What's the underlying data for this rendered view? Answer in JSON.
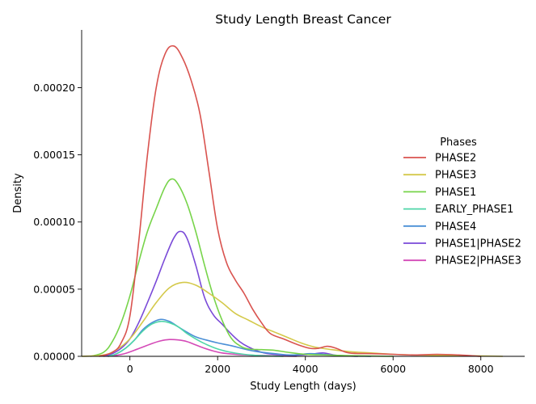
{
  "chart_data": {
    "type": "line",
    "title": "Study Length Breast Cancer",
    "xlabel": "Study Length (days)",
    "ylabel": "Density",
    "xlim": [
      -1100,
      9000
    ],
    "ylim": [
      0,
      0.000243
    ],
    "x_ticks": [
      0,
      2000,
      4000,
      6000,
      8000
    ],
    "x_tick_labels": [
      "0",
      "2000",
      "4000",
      "6000",
      "8000"
    ],
    "y_ticks": [
      0,
      5e-05,
      0.0001,
      0.00015,
      0.0002
    ],
    "y_tick_labels": [
      "0.00000",
      "0.00005",
      "0.00010",
      "0.00015",
      "0.00020"
    ],
    "grid": false,
    "legend": {
      "title": "Phases",
      "placement": "center-right"
    },
    "series": [
      {
        "name": "PHASE2",
        "color": "#d9534f",
        "points": [
          [
            -700,
            0
          ],
          [
            -400,
            3e-06
          ],
          [
            -200,
            1e-05
          ],
          [
            0,
            3e-05
          ],
          [
            200,
            8.5e-05
          ],
          [
            400,
            0.00015
          ],
          [
            600,
            0.0002
          ],
          [
            800,
            0.000225
          ],
          [
            1000,
            0.000231
          ],
          [
            1200,
            0.000222
          ],
          [
            1400,
            0.000205
          ],
          [
            1600,
            0.00018
          ],
          [
            1800,
            0.000138
          ],
          [
            2000,
            9.5e-05
          ],
          [
            2200,
            7e-05
          ],
          [
            2400,
            5.7e-05
          ],
          [
            2600,
            4.7e-05
          ],
          [
            2800,
            3.5e-05
          ],
          [
            3000,
            2.5e-05
          ],
          [
            3200,
            1.7e-05
          ],
          [
            3500,
            1.3e-05
          ],
          [
            3800,
            9e-06
          ],
          [
            4100,
            6e-06
          ],
          [
            4300,
            6e-06
          ],
          [
            4500,
            7.5e-06
          ],
          [
            4700,
            6e-06
          ],
          [
            5000,
            2.5e-06
          ],
          [
            5500,
            2e-06
          ],
          [
            6000,
            1.5e-06
          ],
          [
            6500,
            1e-06
          ],
          [
            7000,
            1.5e-06
          ],
          [
            7500,
            1e-06
          ],
          [
            8000,
            0
          ]
        ]
      },
      {
        "name": "PHASE3",
        "color": "#d4c94a",
        "points": [
          [
            -1100,
            0
          ],
          [
            -600,
            1e-06
          ],
          [
            -300,
            5e-06
          ],
          [
            0,
            1.3e-05
          ],
          [
            300,
            2.6e-05
          ],
          [
            600,
            4e-05
          ],
          [
            900,
            5.1e-05
          ],
          [
            1200,
            5.5e-05
          ],
          [
            1500,
            5.3e-05
          ],
          [
            1800,
            4.7e-05
          ],
          [
            2100,
            4e-05
          ],
          [
            2400,
            3.2e-05
          ],
          [
            2700,
            2.7e-05
          ],
          [
            3000,
            2.2e-05
          ],
          [
            3300,
            1.8e-05
          ],
          [
            3600,
            1.4e-05
          ],
          [
            3900,
            1e-05
          ],
          [
            4200,
            7e-06
          ],
          [
            4600,
            5e-06
          ],
          [
            5000,
            3.5e-06
          ],
          [
            5500,
            2.5e-06
          ],
          [
            6000,
            1.5e-06
          ],
          [
            6500,
            1e-06
          ],
          [
            7000,
            8e-07
          ],
          [
            7500,
            5e-07
          ],
          [
            8000,
            3e-07
          ],
          [
            8500,
            0
          ]
        ]
      },
      {
        "name": "PHASE1",
        "color": "#77d44a",
        "points": [
          [
            -900,
            0
          ],
          [
            -600,
            3e-06
          ],
          [
            -400,
            1.1e-05
          ],
          [
            -200,
            2.5e-05
          ],
          [
            0,
            4.5e-05
          ],
          [
            200,
            7e-05
          ],
          [
            400,
            9.3e-05
          ],
          [
            600,
            0.00011
          ],
          [
            800,
            0.000126
          ],
          [
            950,
            0.000132
          ],
          [
            1100,
            0.000128
          ],
          [
            1300,
            0.000114
          ],
          [
            1500,
            9.3e-05
          ],
          [
            1700,
            6.8e-05
          ],
          [
            1900,
            4.5e-05
          ],
          [
            2100,
            2.7e-05
          ],
          [
            2300,
            1.4e-05
          ],
          [
            2500,
            8e-06
          ],
          [
            2700,
            5.5e-06
          ],
          [
            3000,
            5e-06
          ],
          [
            3300,
            4.5e-06
          ],
          [
            3600,
            3e-06
          ],
          [
            4000,
            1.5e-06
          ],
          [
            4500,
            1e-06
          ],
          [
            5000,
            5e-07
          ],
          [
            6000,
            0
          ]
        ]
      },
      {
        "name": "EARLY_PHASE1",
        "color": "#4fd6a8",
        "points": [
          [
            -500,
            0
          ],
          [
            -300,
            2e-06
          ],
          [
            -100,
            6e-06
          ],
          [
            100,
            1.2e-05
          ],
          [
            300,
            1.9e-05
          ],
          [
            500,
            2.4e-05
          ],
          [
            700,
            2.6e-05
          ],
          [
            900,
            2.5e-05
          ],
          [
            1100,
            2.2e-05
          ],
          [
            1300,
            1.7e-05
          ],
          [
            1500,
            1.3e-05
          ],
          [
            1700,
            9.5e-06
          ],
          [
            2000,
            5.5e-06
          ],
          [
            2300,
            3e-06
          ],
          [
            2600,
            1.5e-06
          ],
          [
            3000,
            5e-07
          ],
          [
            3500,
            0
          ]
        ]
      },
      {
        "name": "PHASE4",
        "color": "#4a8fd6",
        "points": [
          [
            -500,
            0
          ],
          [
            -300,
            2e-06
          ],
          [
            -100,
            6e-06
          ],
          [
            100,
            1.2e-05
          ],
          [
            300,
            2e-05
          ],
          [
            500,
            2.5e-05
          ],
          [
            700,
            2.75e-05
          ],
          [
            900,
            2.6e-05
          ],
          [
            1100,
            2.2e-05
          ],
          [
            1300,
            1.8e-05
          ],
          [
            1500,
            1.45e-05
          ],
          [
            1700,
            1.25e-05
          ],
          [
            2000,
            1e-05
          ],
          [
            2300,
            8e-06
          ],
          [
            2600,
            5.5e-06
          ],
          [
            2900,
            3.5e-06
          ],
          [
            3300,
            2e-06
          ],
          [
            3700,
            1e-06
          ],
          [
            4100,
            2e-06
          ],
          [
            4400,
            1.5e-06
          ],
          [
            4800,
            5e-07
          ],
          [
            5500,
            0
          ]
        ]
      },
      {
        "name": "PHASE1|PHASE2",
        "color": "#7a4ad8",
        "points": [
          [
            -600,
            0
          ],
          [
            -400,
            2e-06
          ],
          [
            -200,
            6e-06
          ],
          [
            0,
            1.3e-05
          ],
          [
            200,
            2.5e-05
          ],
          [
            400,
            4e-05
          ],
          [
            600,
            5.6e-05
          ],
          [
            800,
            7.3e-05
          ],
          [
            1000,
            8.8e-05
          ],
          [
            1150,
            9.3e-05
          ],
          [
            1300,
            8.8e-05
          ],
          [
            1500,
            6.8e-05
          ],
          [
            1700,
            4.4e-05
          ],
          [
            1900,
            3.1e-05
          ],
          [
            2100,
            2.4e-05
          ],
          [
            2300,
            1.7e-05
          ],
          [
            2500,
            1.1e-05
          ],
          [
            2700,
            7e-06
          ],
          [
            3000,
            3e-06
          ],
          [
            3300,
            1.5e-06
          ],
          [
            3700,
            8e-07
          ],
          [
            4100,
            1.5e-06
          ],
          [
            4400,
            2.5e-06
          ],
          [
            4700,
            8e-07
          ],
          [
            5200,
            0
          ]
        ]
      },
      {
        "name": "PHASE2|PHASE3",
        "color": "#d44ab7",
        "points": [
          [
            -500,
            0
          ],
          [
            -300,
            8e-07
          ],
          [
            -100,
            2.2e-06
          ],
          [
            100,
            4.5e-06
          ],
          [
            300,
            7e-06
          ],
          [
            500,
            9.5e-06
          ],
          [
            700,
            1.15e-05
          ],
          [
            900,
            1.25e-05
          ],
          [
            1100,
            1.22e-05
          ],
          [
            1300,
            1.1e-05
          ],
          [
            1500,
            8.5e-06
          ],
          [
            1700,
            6e-06
          ],
          [
            1900,
            4e-06
          ],
          [
            2100,
            2.5e-06
          ],
          [
            2400,
            1.5e-06
          ],
          [
            2800,
            8e-07
          ],
          [
            3200,
            5e-07
          ],
          [
            3800,
            0
          ]
        ]
      }
    ]
  }
}
